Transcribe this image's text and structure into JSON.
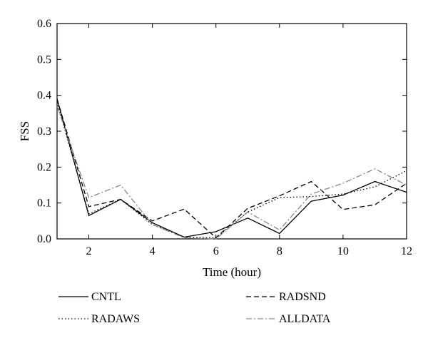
{
  "chart_data": {
    "type": "line",
    "xlabel": "Time (hour)",
    "ylabel": "FSS",
    "xlim": [
      1,
      12
    ],
    "ylim": [
      0,
      0.6
    ],
    "x_ticks": [
      2,
      4,
      6,
      8,
      10,
      12
    ],
    "y_ticks": [
      "0.0",
      "0.1",
      "0.2",
      "0.3",
      "0.4",
      "0.5",
      "0.6"
    ],
    "grid": false,
    "legend_position": "bottom",
    "x": [
      1,
      2,
      3,
      4,
      5,
      6,
      7,
      8,
      9,
      10,
      11,
      12
    ],
    "series": [
      {
        "name": "CNTL",
        "color": "#000000",
        "dash": "solid",
        "values": [
          0.39,
          0.065,
          0.11,
          0.045,
          0.005,
          0.02,
          0.058,
          0.015,
          0.105,
          0.122,
          0.16,
          0.13
        ]
      },
      {
        "name": "RADSND",
        "color": "#000000",
        "dash": "dashed",
        "values": [
          0.39,
          0.09,
          0.11,
          0.05,
          0.083,
          0.003,
          0.085,
          0.12,
          0.16,
          0.082,
          0.095,
          0.155
        ]
      },
      {
        "name": "RADAWS",
        "color": "#000000",
        "dash": "dotted",
        "values": [
          0.38,
          0.07,
          0.11,
          0.04,
          0.005,
          0.003,
          0.075,
          0.115,
          0.118,
          0.125,
          0.145,
          0.19
        ]
      },
      {
        "name": "ALLDATA",
        "color": "#888888",
        "dash": "dashdot",
        "values": [
          0.37,
          0.115,
          0.15,
          0.04,
          0.003,
          0.0,
          0.075,
          0.025,
          0.125,
          0.155,
          0.195,
          0.15
        ]
      }
    ]
  }
}
